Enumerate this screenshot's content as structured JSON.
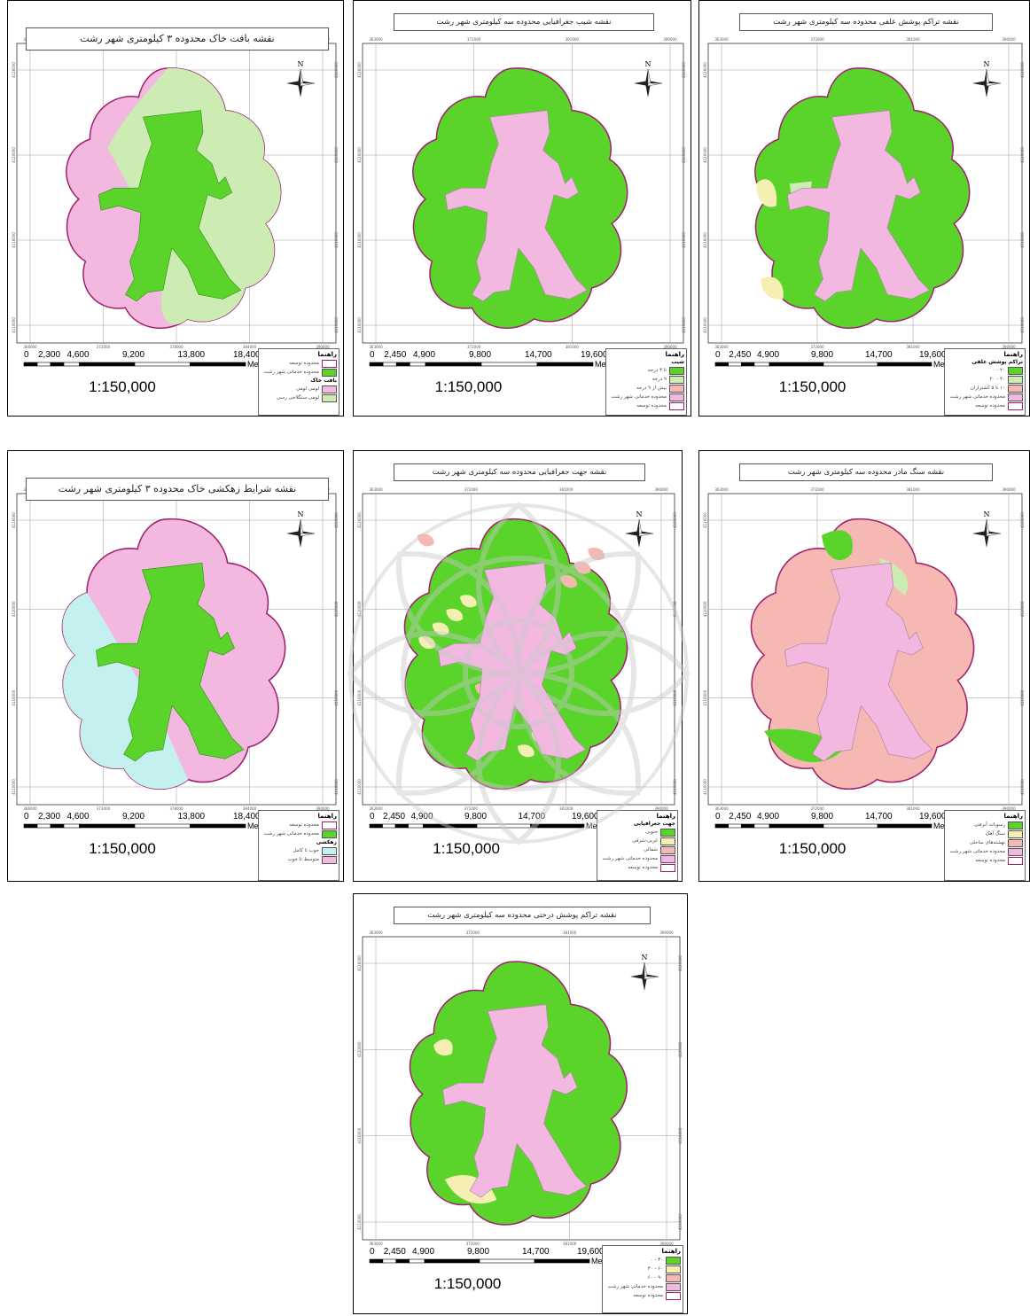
{
  "scale_ratio": "1:150,000",
  "units": "Meters",
  "north_label": "N",
  "legend_heading": "راهنما",
  "colors": {
    "urban": "#f2b8e0",
    "green": "#5ad42a",
    "light_green": "#ccecb4",
    "cream": "#f6efb4",
    "salmon": "#f6b8b3",
    "cyan": "#c4f1ef",
    "boundary": "#a0206e",
    "grid": "#9a9a9a"
  },
  "coordinate_labels": {
    "x_ticks_a": [
      "366000",
      "372000",
      "378000",
      "384000",
      "390000"
    ],
    "x_ticks_b": [
      "363000",
      "372000",
      "381000",
      "390000"
    ],
    "y_ticks": [
      "4126000",
      "4120000",
      "4116000",
      "4110000"
    ]
  },
  "maps": [
    {
      "title": "نقشه بافت خاک محدوده ۳ کیلومتری شهر رشت",
      "scale_labels": [
        "0",
        "2,300",
        "4,600",
        "9,200",
        "13,800",
        "18,400"
      ],
      "legend": {
        "heading": "راهنما",
        "items": [
          {
            "label": "محدوده توسعه",
            "swatch": "boundary"
          },
          {
            "label": "محدوده خدماتی شهر رشت",
            "swatch": "green"
          }
        ],
        "subheading": "بافت خاک",
        "items2": [
          {
            "label": "لومی لومی",
            "swatch": "urban"
          },
          {
            "label": "لومی سنگلاخی رسی",
            "swatch": "light_green"
          }
        ]
      }
    },
    {
      "title": "نقشه شیب جغرافیایی محدوده سه کیلومتری شهر رشت",
      "scale_labels": [
        "0",
        "2,450",
        "4,900",
        "9,800",
        "14,700",
        "19,600"
      ],
      "legend": {
        "heading": "راهنما",
        "subheading": "شیب",
        "items": [
          {
            "label": "تا ۳ درجه",
            "swatch": "green"
          },
          {
            "label": "۹ درجه",
            "swatch": "light_green"
          },
          {
            "label": "بیش از ۹ درجه",
            "swatch": "salmon"
          },
          {
            "label": "محدوده خدماتی شهر رشت",
            "swatch": "urban"
          },
          {
            "label": "محدوده توسعه",
            "swatch": "boundary"
          }
        ]
      }
    },
    {
      "title": "نقشه تراکم پوشش علفی محدوده سه کیلومتری شهر رشت",
      "scale_labels": [
        "0",
        "2,450",
        "4,900",
        "9,800",
        "14,700",
        "19,600"
      ],
      "legend": {
        "heading": "راهنما",
        "subheading": "تراکم پوشش علفی",
        "items": [
          {
            "label": "۲۰ - ۰",
            "swatch": "green"
          },
          {
            "label": "۴۰ - ۲۰",
            "swatch": "light_green"
          },
          {
            "label": "۱۰ تا ۵ کشتزاران",
            "swatch": "salmon"
          },
          {
            "label": "محدوده خدماتی شهر رشت",
            "swatch": "urban"
          },
          {
            "label": "محدوده توسعه",
            "swatch": "boundary"
          }
        ]
      }
    },
    {
      "title": "نقشه شرایط زهکشی خاک محدوده ۳ کیلومتری شهر رشت",
      "scale_labels": [
        "0",
        "2,300",
        "4,600",
        "9,200",
        "13,800",
        "18,400"
      ],
      "legend": {
        "heading": "راهنما",
        "items": [
          {
            "label": "محدوده توسعه",
            "swatch": "boundary"
          },
          {
            "label": "محدوده خدماتی شهر رشت",
            "swatch": "green"
          }
        ],
        "subheading": "زهکشی",
        "items2": [
          {
            "label": "خوب تا کامل",
            "swatch": "cyan"
          },
          {
            "label": "متوسط تا خوب",
            "swatch": "urban"
          }
        ]
      }
    },
    {
      "title": "نقشه جهت جغرافیایی محدوده سه کیلومتری شهر رشت",
      "scale_labels": [
        "0",
        "2,450",
        "4,900",
        "9,800",
        "14,700",
        "19,600"
      ],
      "legend": {
        "heading": "راهنما",
        "subheading": "جهت جغرافیایی",
        "items": [
          {
            "label": "جنوبی",
            "swatch": "green"
          },
          {
            "label": "غربی-شرقی",
            "swatch": "cream"
          },
          {
            "label": "شمالی",
            "swatch": "salmon"
          },
          {
            "label": "محدوده خدماتی شهر رشت",
            "swatch": "urban"
          },
          {
            "label": "محدوده توسعه",
            "swatch": "boundary"
          }
        ]
      }
    },
    {
      "title": "نقشه سنگ مادر محدوده سه کیلومتری شهر رشت",
      "scale_labels": [
        "0",
        "2,450",
        "4,900",
        "9,800",
        "14,700",
        "19,600"
      ],
      "legend": {
        "heading": "راهنما",
        "items": [
          {
            "label": "رسوبات آبرفتی",
            "swatch": "green"
          },
          {
            "label": "سنگ آهک",
            "swatch": "cream"
          },
          {
            "label": "نهشته‌های ساحلی",
            "swatch": "salmon"
          },
          {
            "label": "محدوده خدماتی شهر رشت",
            "swatch": "urban"
          },
          {
            "label": "محدوده توسعه",
            "swatch": "boundary"
          }
        ]
      }
    },
    {
      "title": "نقشه تراکم پوشش درختی محدوده سه کیلومتری شهر رشت",
      "scale_labels": [
        "0",
        "2,450",
        "4,900",
        "9,800",
        "14,700",
        "19,600"
      ],
      "legend": {
        "heading": "راهنما",
        "items": [
          {
            "label": "۳۰ - ۰",
            "swatch": "green"
          },
          {
            "label": "۶۰ - ۳۰",
            "swatch": "cream"
          },
          {
            "label": "۹۰ - ۶۰",
            "swatch": "salmon"
          },
          {
            "label": "محدوده خدماتی شهر رشت",
            "swatch": "urban"
          },
          {
            "label": "محدوده توسعه",
            "swatch": "boundary"
          }
        ]
      }
    }
  ]
}
